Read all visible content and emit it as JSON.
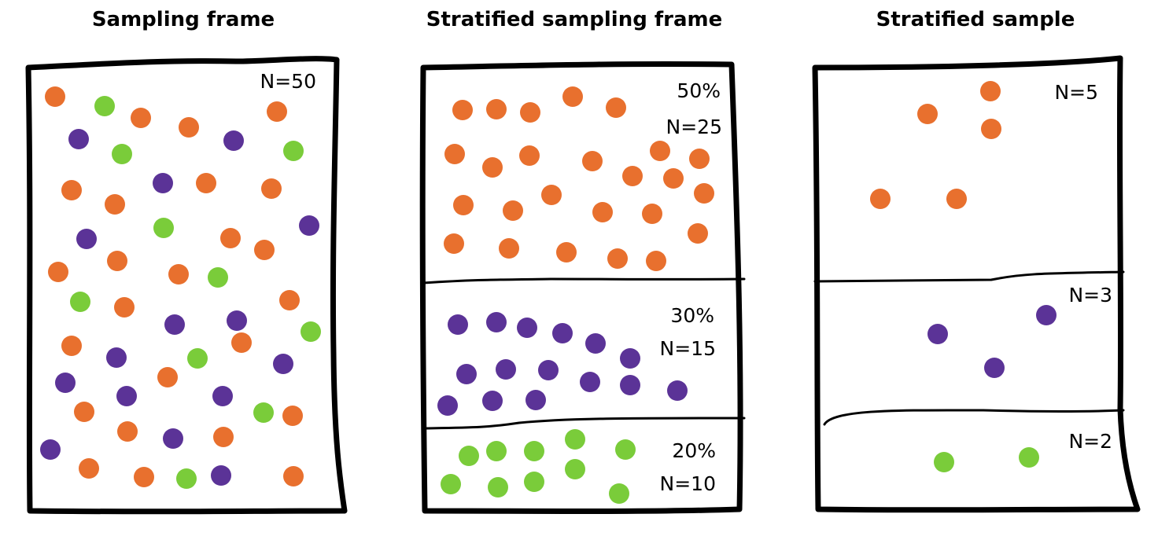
{
  "colors": {
    "orange": "#E8702E",
    "purple": "#5B3397",
    "green": "#7ACC3A"
  },
  "panels": [
    {
      "title": "Sampling frame",
      "label": "N=50"
    },
    {
      "title": "Stratified sampling frame",
      "strata": [
        {
          "percent": "50%",
          "n": "N=25",
          "color": "orange",
          "count": 25
        },
        {
          "percent": "30%",
          "n": "N=15",
          "color": "purple",
          "count": 15
        },
        {
          "percent": "20%",
          "n": "N=10",
          "color": "green",
          "count": 10
        }
      ]
    },
    {
      "title": "Stratified sample",
      "strata": [
        {
          "n": "N=5",
          "color": "orange",
          "count": 5
        },
        {
          "n": "N=3",
          "color": "purple",
          "count": 3
        },
        {
          "n": "N=2",
          "color": "green",
          "count": 2
        }
      ]
    }
  ]
}
